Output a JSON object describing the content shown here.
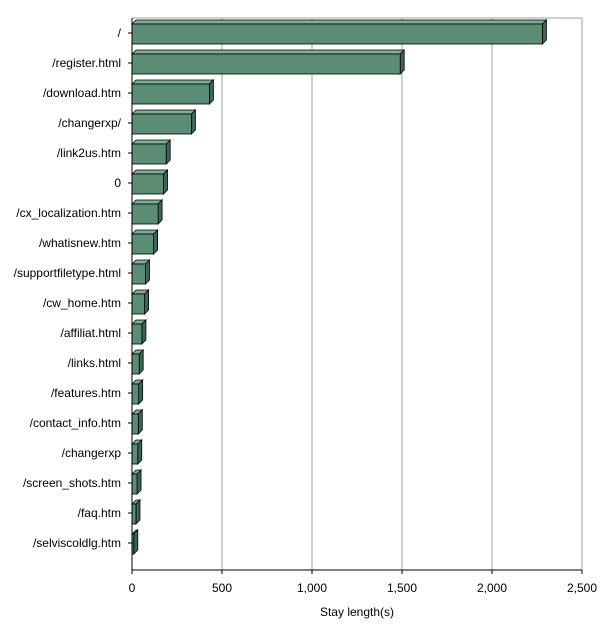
{
  "chart_data": {
    "type": "bar",
    "orientation": "horizontal",
    "style": "3d",
    "categories": [
      "/",
      "/register.html",
      "/download.htm",
      "/changerxp/",
      "/link2us.htm",
      "0",
      "/cx_localization.htm",
      "/whatisnew.htm",
      "/supportfiletype.html",
      "/cw_home.htm",
      "/affiliat.html",
      "/links.html",
      "/features.htm",
      "/contact_info.htm",
      "/changerxp",
      "/screen_shots.htm",
      "/faq.htm",
      "/selviscoldlg.htm"
    ],
    "values": [
      2280,
      1490,
      430,
      330,
      190,
      175,
      145,
      120,
      75,
      70,
      55,
      40,
      37,
      35,
      32,
      28,
      22,
      10
    ],
    "xlabel": "Stay length(s)",
    "ylabel": "",
    "xlim": [
      0,
      2500
    ],
    "xticks": [
      0,
      500,
      1000,
      1500,
      2000,
      2500
    ],
    "xtick_labels": [
      "0",
      "500",
      "1,000",
      "1,500",
      "2,000",
      "2,500"
    ],
    "grid": true,
    "colors": {
      "bar_front": "#5b8c74",
      "bar_top": "#7fae96",
      "bar_side": "#3c6652",
      "bar_edge": "#000000",
      "grid": "#a0a0a0"
    }
  }
}
